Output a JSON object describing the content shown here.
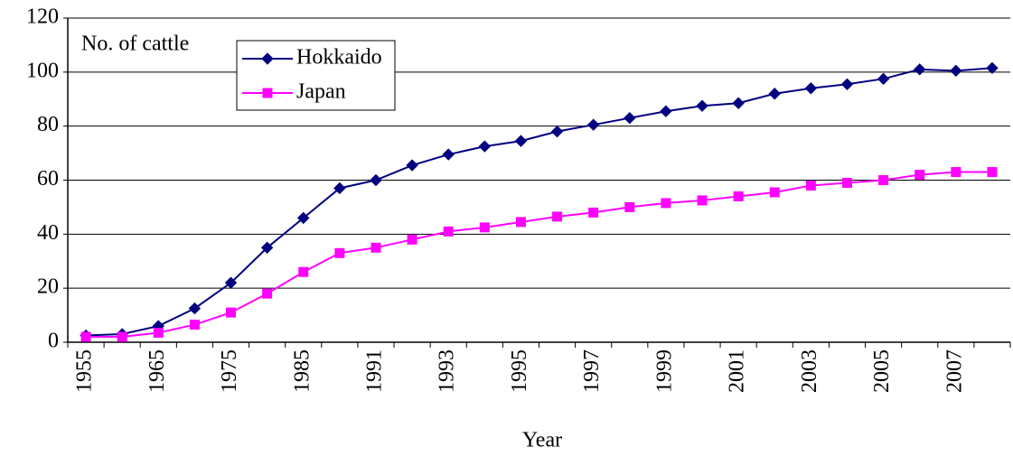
{
  "chart_data": {
    "type": "line",
    "ylabel": "No. of cattle",
    "xlabel": "Year",
    "categories": [
      "1955",
      null,
      "1965",
      null,
      "1975",
      null,
      "1985",
      null,
      "1991",
      null,
      "1993",
      null,
      "1995",
      null,
      "1997",
      null,
      "1999",
      null,
      "2001",
      null,
      "2003",
      null,
      "2005",
      null,
      "2007",
      null
    ],
    "series": [
      {
        "name": "Hokkaido",
        "color": "#000080",
        "marker": "diamond",
        "values": [
          2.5,
          3,
          6,
          12.5,
          22,
          35,
          46,
          57,
          60,
          65.5,
          69.5,
          72.5,
          74.5,
          78,
          80.5,
          83,
          85.5,
          87.5,
          88.5,
          92,
          94,
          95.5,
          97.5,
          101,
          100.5,
          101.5
        ]
      },
      {
        "name": "Japan",
        "color": "#ff00ff",
        "marker": "square",
        "values": [
          2,
          2,
          3.5,
          6.5,
          11,
          18,
          26,
          33,
          35,
          38,
          41,
          42.5,
          44.5,
          46.5,
          48,
          50,
          51.5,
          52.5,
          54,
          55.5,
          58,
          59,
          60,
          62,
          63,
          63
        ]
      }
    ],
    "ylim": [
      0,
      120
    ],
    "yticks": [
      0,
      20,
      40,
      60,
      80,
      100,
      120
    ],
    "grid": true
  }
}
